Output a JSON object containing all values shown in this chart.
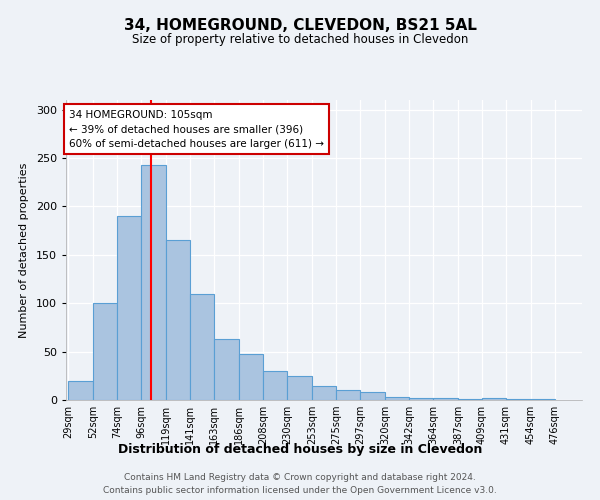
{
  "title": "34, HOMEGROUND, CLEVEDON, BS21 5AL",
  "subtitle": "Size of property relative to detached houses in Clevedon",
  "bar_heights": [
    20,
    100,
    190,
    243,
    165,
    110,
    63,
    48,
    30,
    25,
    14,
    10,
    8,
    3,
    2,
    2,
    1,
    2,
    1,
    1
  ],
  "bin_edges": [
    29,
    52,
    74,
    96,
    119,
    141,
    163,
    186,
    208,
    230,
    253,
    275,
    297,
    320,
    342,
    364,
    387,
    409,
    431,
    454,
    476
  ],
  "x_tick_labels": [
    "29sqm",
    "52sqm",
    "74sqm",
    "96sqm",
    "119sqm",
    "141sqm",
    "163sqm",
    "186sqm",
    "208sqm",
    "230sqm",
    "253sqm",
    "275sqm",
    "297sqm",
    "320sqm",
    "342sqm",
    "364sqm",
    "387sqm",
    "409sqm",
    "431sqm",
    "454sqm",
    "476sqm"
  ],
  "bar_color": "#aac4e0",
  "bar_edge_color": "#5a9fd4",
  "ylabel": "Number of detached properties",
  "xlabel": "Distribution of detached houses by size in Clevedon",
  "red_line_x": 105,
  "ylim": [
    0,
    310
  ],
  "annotation_title": "34 HOMEGROUND: 105sqm",
  "annotation_line1": "← 39% of detached houses are smaller (396)",
  "annotation_line2": "60% of semi-detached houses are larger (611) →",
  "footer_line1": "Contains HM Land Registry data © Crown copyright and database right 2024.",
  "footer_line2": "Contains public sector information licensed under the Open Government Licence v3.0.",
  "background_color": "#eef2f7",
  "plot_background": "#eef2f7",
  "grid_color": "#ffffff"
}
